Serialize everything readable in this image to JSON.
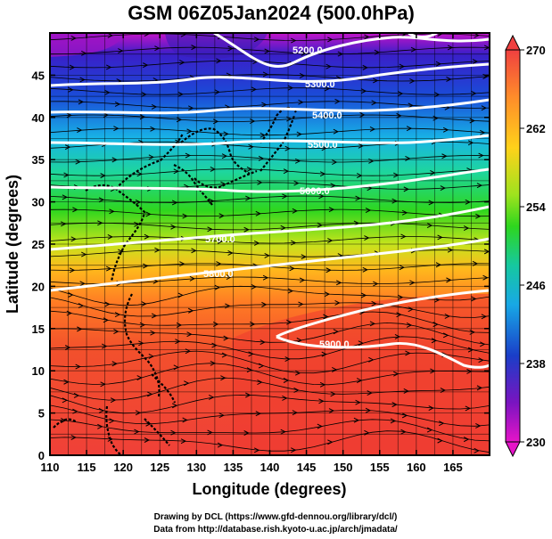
{
  "title": "GSM 06Z05Jan2024 (500.0hPa)",
  "xlabel": "Longitude (degrees)",
  "ylabel": "Latitude  (degrees)",
  "credit_line1": "Drawing by DCL (https://www.gfd-dennou.org/library/dcl/)",
  "credit_line2": "Data from http://database.rish.kyoto-u.ac.jp/arch/jmadata/",
  "map": {
    "lon_range": [
      110,
      170
    ],
    "lat_range": [
      0,
      50
    ],
    "lon_ticks": [
      "110",
      "115",
      "120",
      "125",
      "130",
      "135",
      "140",
      "145",
      "150",
      "155",
      "160",
      "165"
    ],
    "lat_ticks": [
      "0",
      "5",
      "10",
      "15",
      "20",
      "25",
      "30",
      "35",
      "40",
      "45"
    ],
    "lon_tick_values": [
      110,
      115,
      120,
      125,
      130,
      135,
      140,
      145,
      150,
      155,
      160,
      165
    ],
    "lat_tick_values": [
      0,
      5,
      10,
      15,
      20,
      25,
      30,
      35,
      40,
      45
    ],
    "vector_field": "wind streamlines (westerly)"
  },
  "colorbar": {
    "labels": [
      "270",
      "262",
      "254",
      "246",
      "238",
      "230"
    ],
    "label_values": [
      270,
      262,
      254,
      246,
      238,
      230
    ],
    "range": [
      230,
      270
    ],
    "colors": [
      "#f04040",
      "#ff8c2a",
      "#ffd21a",
      "#9ee21e",
      "#2ed61e",
      "#16c8a0",
      "#18a8e6",
      "#1a3ec8",
      "#7a14c0",
      "#e614c8"
    ]
  },
  "contours": [
    {
      "label": "5200.0",
      "value": 5200
    },
    {
      "label": "5300.0",
      "value": 5300
    },
    {
      "label": "5400.0",
      "value": 5400
    },
    {
      "label": "5500.0",
      "value": 5500
    },
    {
      "label": "5600.0",
      "value": 5600
    },
    {
      "label": "5700.0",
      "value": 5700
    },
    {
      "label": "5800.0",
      "value": 5800
    },
    {
      "label": "5900.0",
      "value": 5900
    }
  ]
}
